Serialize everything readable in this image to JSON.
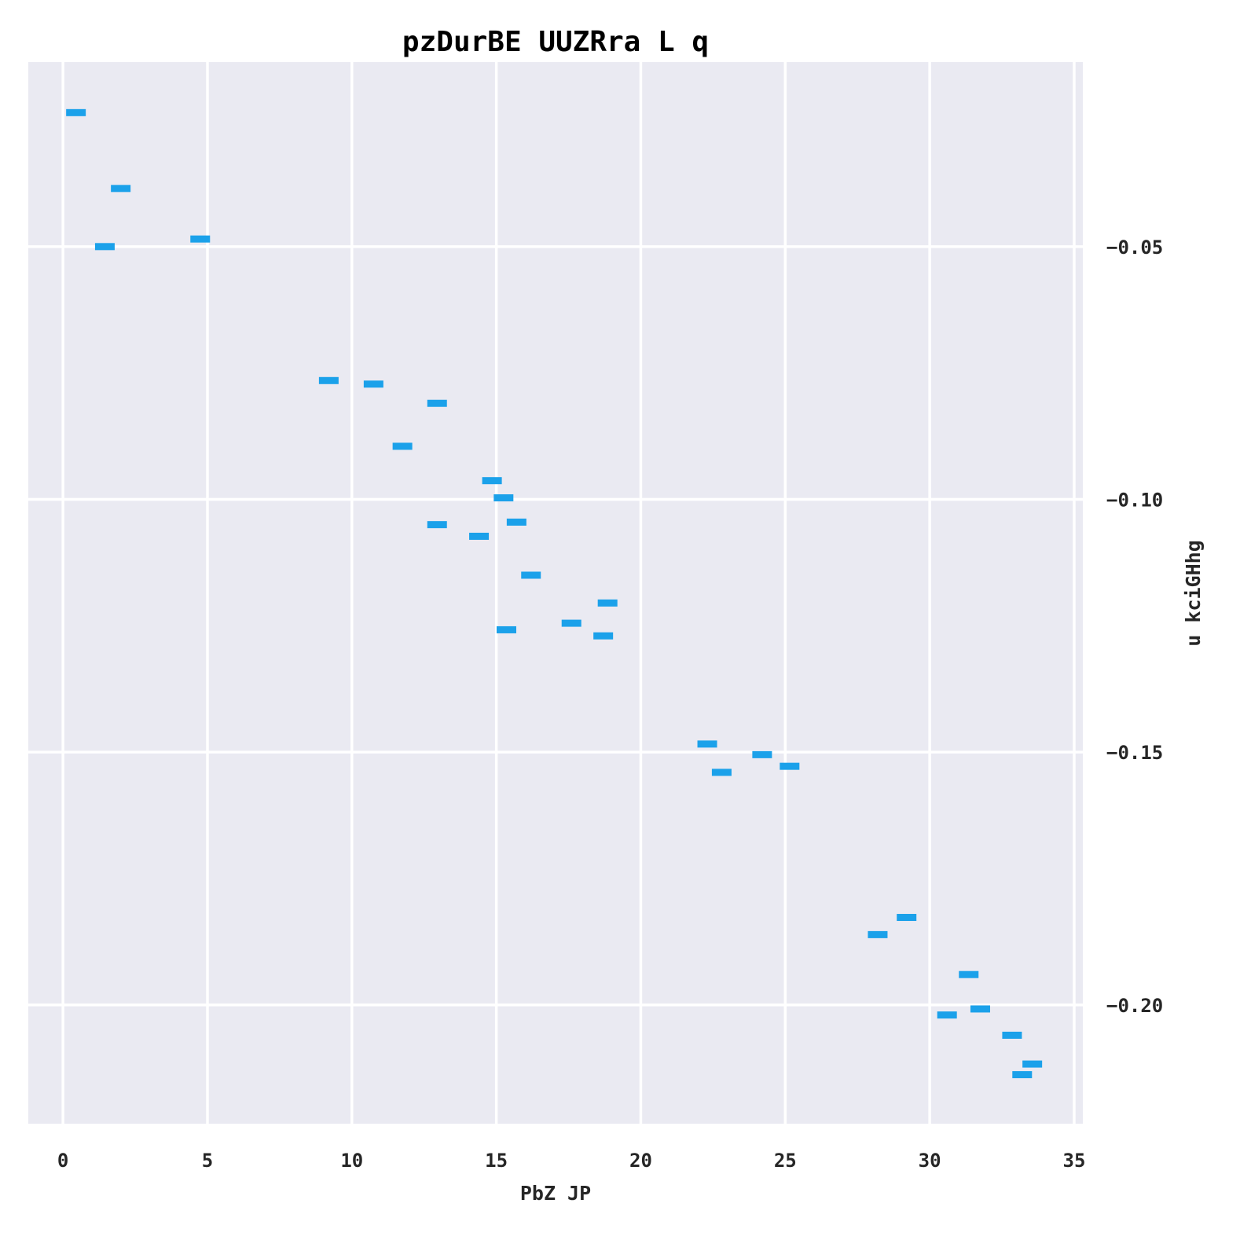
{
  "chart_data": {
    "type": "scatter",
    "title": "pzDurBE UUZRra L q",
    "xlabel": "PbZ JP",
    "ylabel": "u kciGHhg",
    "xlim": [
      -1.2,
      35.3
    ],
    "ylim": [
      -0.2235,
      -0.0135
    ],
    "x_ticks": [
      0,
      5,
      10,
      15,
      20,
      25,
      30,
      35
    ],
    "y_ticks": [
      -0.05,
      -0.1,
      -0.15,
      -0.2
    ],
    "x_tick_labels": [
      "0",
      "5",
      "10",
      "15",
      "20",
      "25",
      "30",
      "35"
    ],
    "y_tick_labels": [
      "−0.05",
      "−0.10",
      "−0.15",
      "−0.20"
    ],
    "y_axis_side": "right",
    "grid": true,
    "marker": "horizontal-dash",
    "colors": {
      "points": "#1ba1ea",
      "plot_background": "#eaeaf2",
      "grid": "#ffffff"
    },
    "points": [
      {
        "x": 0.45,
        "y": -0.0235
      },
      {
        "x": 1.45,
        "y": -0.05
      },
      {
        "x": 2.0,
        "y": -0.0385
      },
      {
        "x": 4.75,
        "y": -0.0485
      },
      {
        "x": 9.2,
        "y": -0.0765
      },
      {
        "x": 10.75,
        "y": -0.0772
      },
      {
        "x": 12.95,
        "y": -0.081
      },
      {
        "x": 11.75,
        "y": -0.0895
      },
      {
        "x": 12.95,
        "y": -0.105
      },
      {
        "x": 14.85,
        "y": -0.0963
      },
      {
        "x": 15.25,
        "y": -0.0997
      },
      {
        "x": 15.7,
        "y": -0.1045
      },
      {
        "x": 14.4,
        "y": -0.1073
      },
      {
        "x": 16.2,
        "y": -0.115
      },
      {
        "x": 15.35,
        "y": -0.1258
      },
      {
        "x": 18.85,
        "y": -0.1205
      },
      {
        "x": 17.6,
        "y": -0.1245
      },
      {
        "x": 18.7,
        "y": -0.127
      },
      {
        "x": 22.3,
        "y": -0.1484
      },
      {
        "x": 24.2,
        "y": -0.1505
      },
      {
        "x": 22.8,
        "y": -0.154
      },
      {
        "x": 25.15,
        "y": -0.1528
      },
      {
        "x": 28.2,
        "y": -0.1861
      },
      {
        "x": 29.2,
        "y": -0.1827
      },
      {
        "x": 31.35,
        "y": -0.194
      },
      {
        "x": 31.75,
        "y": -0.2008
      },
      {
        "x": 30.6,
        "y": -0.202
      },
      {
        "x": 32.85,
        "y": -0.206
      },
      {
        "x": 33.55,
        "y": -0.2117
      },
      {
        "x": 33.2,
        "y": -0.2138
      }
    ]
  }
}
